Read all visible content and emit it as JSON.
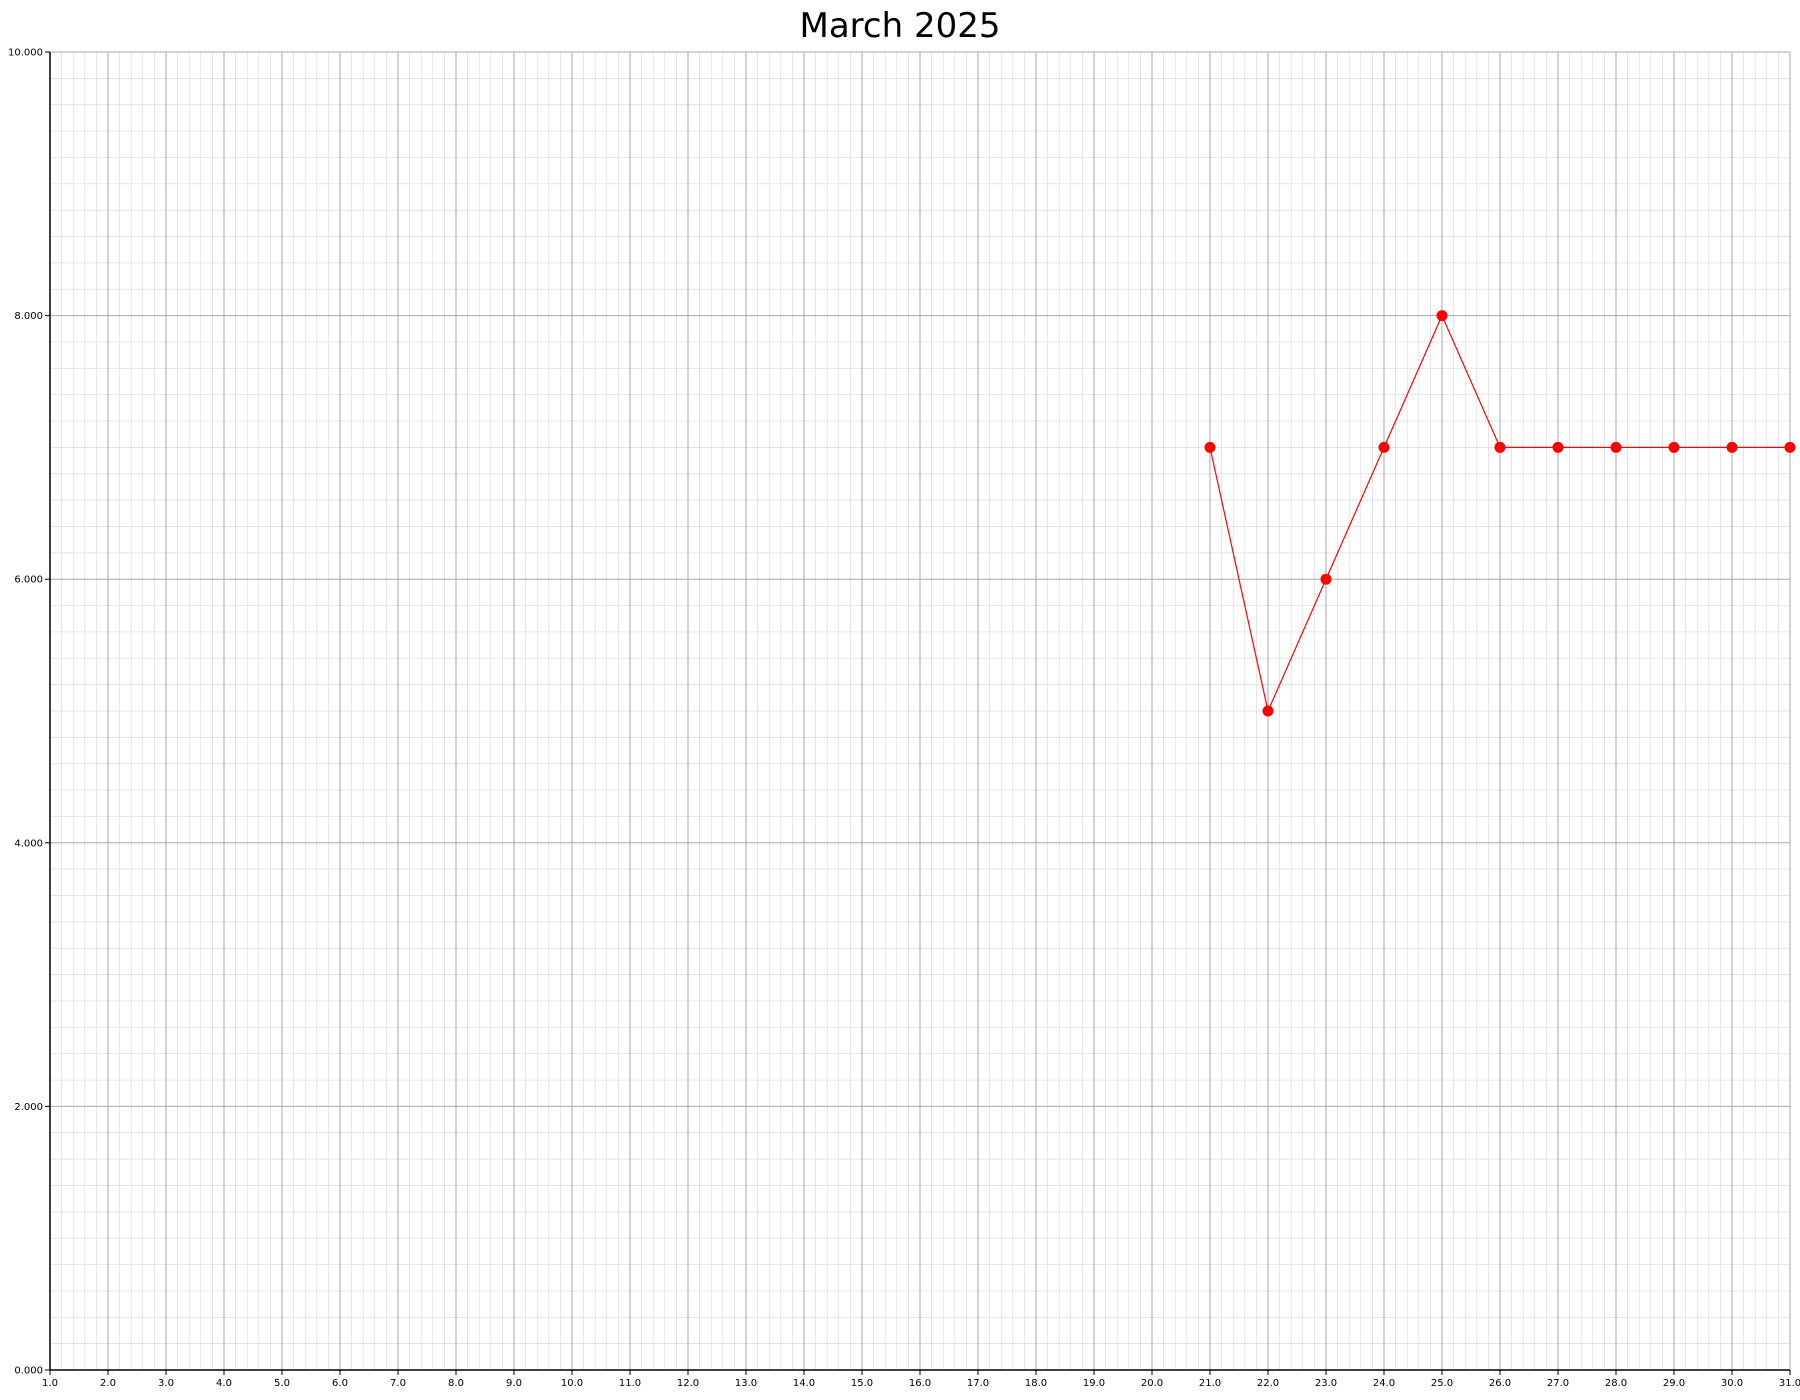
{
  "chart_data": {
    "type": "line",
    "title": "March 2025",
    "xlabel": "",
    "ylabel": "",
    "xlim": [
      1,
      31
    ],
    "ylim": [
      0,
      10
    ],
    "x_ticks": [
      "1.0",
      "2.0",
      "3.0",
      "4.0",
      "5.0",
      "6.0",
      "7.0",
      "8.0",
      "9.0",
      "10.0",
      "11.0",
      "12.0",
      "13.0",
      "14.0",
      "15.0",
      "16.0",
      "17.0",
      "18.0",
      "19.0",
      "20.0",
      "21.0",
      "22.0",
      "23.0",
      "24.0",
      "25.0",
      "26.0",
      "27.0",
      "28.0",
      "29.0",
      "30.0",
      "31.0"
    ],
    "y_ticks": [
      "0.000",
      "2.000",
      "4.000",
      "6.000",
      "8.000",
      "10.000"
    ],
    "grid": true,
    "series": [
      {
        "x": [
          21,
          22,
          23,
          24,
          25,
          26,
          27,
          28,
          29,
          30,
          31
        ],
        "y": [
          7,
          5,
          6,
          7,
          8,
          7,
          7,
          7,
          7,
          7,
          7
        ],
        "color": "#ff0000"
      }
    ]
  }
}
